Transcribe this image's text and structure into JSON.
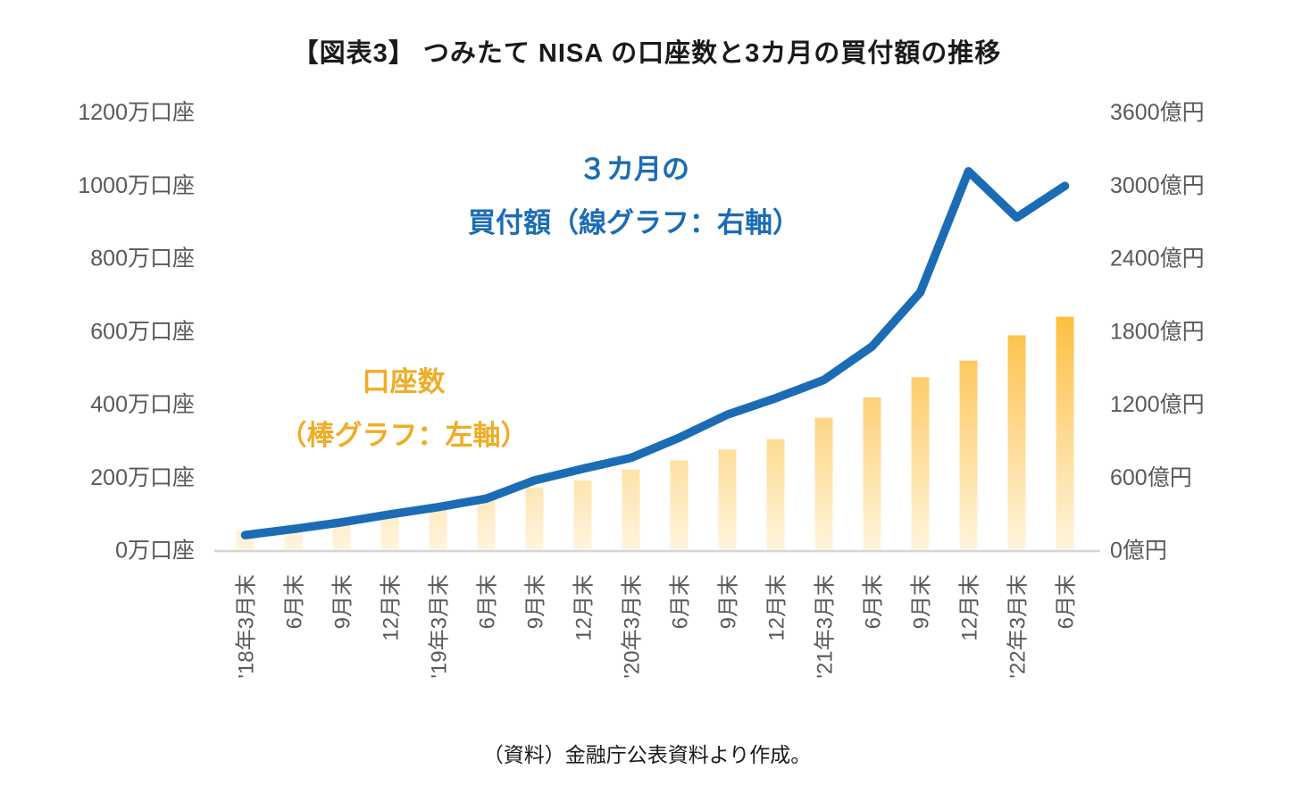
{
  "title": "【図表3】 つみたて NISA の口座数と3カ月の買付額の推移",
  "source_note": "（資料）金融庁公表資料より作成。",
  "annotations": {
    "line_series_label_1": "３カ月の",
    "line_series_label_2": "買付額（線グラフ：右軸）",
    "bar_series_label_1": "口座数",
    "bar_series_label_2": "（棒グラフ：左軸）"
  },
  "colors": {
    "line": "#1B6CB5",
    "bar_top": "#FBBE3C",
    "bar_bottom": "#FFF4DE",
    "axis_text": "#595959",
    "axis_line": "#D6D6D6",
    "blue_text": "#1B6CB5",
    "yellow_text": "#EFAC25"
  },
  "chart_data": {
    "type": "bar",
    "subtype": "bar+line dual axis",
    "title": "【図表3】 つみたて NISA の口座数と3カ月の買付額の推移",
    "categories": [
      "'18年3月末",
      "6月末",
      "9月末",
      "12月末",
      "'19年3月末",
      "6月末",
      "9月末",
      "12月末",
      "'20年3月末",
      "6月末",
      "9月末",
      "12月末",
      "'21年3月末",
      "6月末",
      "9月末",
      "12月末",
      "'22年3月末",
      "6月末"
    ],
    "series": [
      {
        "name": "口座数（棒グラフ：左軸）",
        "type": "bar",
        "axis": "left",
        "unit": "万口座",
        "values": [
          50.8,
          68.9,
          87.8,
          103.7,
          127.1,
          147.0,
          170.5,
          189.4,
          219.4,
          244.7,
          274.6,
          302.8,
          361.7,
          417.5,
          472.4,
          518.2,
          587.3,
          638.2
        ]
      },
      {
        "name": "３カ月の買付額（線グラフ：右軸）",
        "type": "line",
        "axis": "right",
        "unit": "億円",
        "values": [
          120,
          170,
          225,
          290,
          350,
          420,
          570,
          665,
          755,
          920,
          1110,
          1245,
          1395,
          1670,
          2115,
          3110,
          2730,
          2990
        ]
      }
    ],
    "left_axis": {
      "max": 1200,
      "min": 0,
      "ticks": [
        "0万口座",
        "200万口座",
        "400万口座",
        "600万口座",
        "800万口座",
        "1000万口座",
        "1200万口座"
      ]
    },
    "right_axis": {
      "max": 3600,
      "min": 0,
      "ticks": [
        "0億円",
        "600億円",
        "1200億円",
        "1800億円",
        "2400億円",
        "3000億円",
        "3600億円"
      ]
    },
    "grid": false,
    "legend": "in-plot text annotations"
  }
}
